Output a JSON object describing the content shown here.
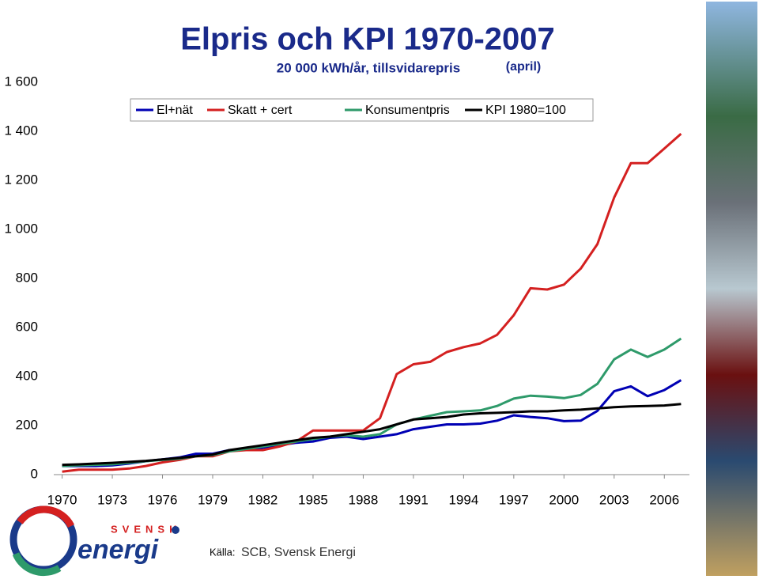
{
  "chart_data": {
    "type": "line",
    "title": "Elpris och KPI 1970-2007",
    "subtitle": "20 000 kWh/år, tillsvidarepris",
    "note": "(april)",
    "source_label": "Källa:",
    "source": "SCB, Svensk Energi",
    "logo": {
      "top": "SVENSK",
      "bottom": "energi"
    },
    "x": [
      1970,
      1971,
      1972,
      1973,
      1974,
      1975,
      1976,
      1977,
      1978,
      1979,
      1980,
      1981,
      1982,
      1983,
      1984,
      1985,
      1986,
      1987,
      1988,
      1989,
      1990,
      1991,
      1992,
      1993,
      1994,
      1995,
      1996,
      1997,
      1998,
      1999,
      2000,
      2001,
      2002,
      2003,
      2004,
      2005,
      2006,
      2007
    ],
    "xlim": [
      1969.5,
      2007.5
    ],
    "xticks": [
      1970,
      1973,
      1976,
      1979,
      1982,
      1985,
      1988,
      1991,
      1994,
      1997,
      2000,
      2003,
      2006
    ],
    "ylim": [
      0,
      1600
    ],
    "yticks": [
      0,
      200,
      400,
      600,
      800,
      {
        "value": 1000,
        "label": "1 000"
      },
      {
        "value": 1200,
        "label": "1 200"
      },
      {
        "value": 1400,
        "label": "1 400"
      },
      {
        "value": 1600,
        "label": "1 600"
      }
    ],
    "grid": false,
    "series": [
      {
        "name": "El+nät",
        "color": "#0000b4",
        "values": [
          35,
          35,
          35,
          38,
          45,
          55,
          62,
          70,
          85,
          85,
          100,
          105,
          110,
          120,
          130,
          135,
          150,
          155,
          145,
          155,
          165,
          185,
          195,
          205,
          205,
          208,
          220,
          242,
          235,
          230,
          218,
          220,
          260,
          340,
          360,
          320,
          345,
          385
        ]
      },
      {
        "name": "Skatt + cert",
        "color": "#d42020",
        "values": [
          12,
          20,
          20,
          20,
          25,
          35,
          50,
          60,
          75,
          75,
          95,
          100,
          100,
          115,
          135,
          180,
          180,
          180,
          180,
          230,
          410,
          450,
          460,
          500,
          520,
          535,
          570,
          650,
          760,
          755,
          775,
          840,
          940,
          1130,
          1270,
          1270,
          1330,
          1390
        ]
      },
      {
        "name": "Konsumentpris",
        "color": "#2e9a6a",
        "values": [
          35,
          38,
          40,
          42,
          48,
          55,
          60,
          65,
          75,
          80,
          95,
          105,
          115,
          125,
          135,
          145,
          155,
          160,
          155,
          165,
          205,
          225,
          240,
          255,
          258,
          262,
          280,
          310,
          322,
          318,
          312,
          325,
          370,
          470,
          510,
          480,
          510,
          555
        ]
      },
      {
        "name": "KPI 1980=100",
        "color": "#000000",
        "values": [
          40,
          42,
          45,
          48,
          52,
          56,
          62,
          68,
          75,
          82,
          100,
          110,
          120,
          130,
          140,
          150,
          155,
          165,
          175,
          185,
          205,
          225,
          230,
          235,
          245,
          250,
          252,
          255,
          258,
          258,
          262,
          265,
          270,
          275,
          278,
          280,
          282,
          288
        ]
      }
    ]
  }
}
